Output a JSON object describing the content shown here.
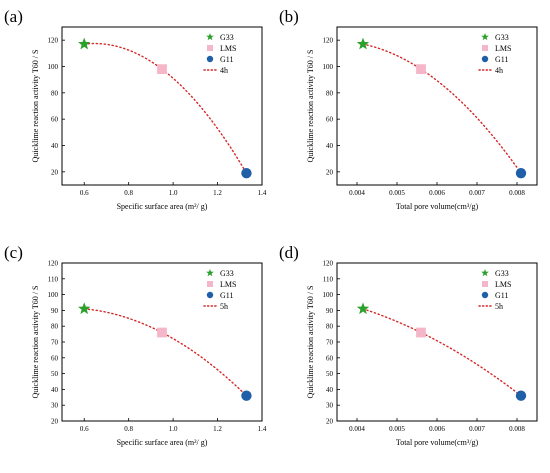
{
  "chart_data": [
    {
      "panel_label": "(a)",
      "type": "scatter",
      "xlabel": "Specific surface area (m²/ g)",
      "ylabel": "Quicklime reaction activity T60 / S",
      "xlim": [
        0.5,
        1.4
      ],
      "ylim": [
        10,
        130
      ],
      "x_ticks": [
        "0.6",
        "0.8",
        "1.0",
        "1.2",
        "1.4"
      ],
      "y_ticks": [
        "20",
        "40",
        "60",
        "80",
        "100",
        "120"
      ],
      "series": [
        {
          "name": "G33",
          "marker": "star",
          "color": "#2ca02c",
          "x": [
            0.6
          ],
          "y": [
            117
          ]
        },
        {
          "name": "LMS",
          "marker": "square",
          "color": "#f4b6c8",
          "x": [
            0.95
          ],
          "y": [
            98
          ]
        },
        {
          "name": "G11",
          "marker": "circle",
          "color": "#1f5fa8",
          "x": [
            1.33
          ],
          "y": [
            19
          ]
        }
      ],
      "fit": {
        "name": "4h",
        "color": "#d62728",
        "x": [
          0.6,
          0.95,
          1.33
        ],
        "y": [
          117,
          98,
          19
        ]
      },
      "legend": "top-right"
    },
    {
      "panel_label": "(b)",
      "type": "scatter",
      "xlabel": "Total pore volume(cm³/g)",
      "ylabel": "Quicklime reaction activity T60 / S",
      "xlim": [
        0.0035,
        0.0085
      ],
      "ylim": [
        10,
        130
      ],
      "x_ticks": [
        "0.004",
        "0.005",
        "0.006",
        "0.007",
        "0.008"
      ],
      "y_ticks": [
        "20",
        "40",
        "60",
        "80",
        "100",
        "120"
      ],
      "series": [
        {
          "name": "G33",
          "marker": "star",
          "color": "#2ca02c",
          "x": [
            0.00415
          ],
          "y": [
            117
          ]
        },
        {
          "name": "LMS",
          "marker": "square",
          "color": "#f4b6c8",
          "x": [
            0.0056
          ],
          "y": [
            98
          ]
        },
        {
          "name": "G11",
          "marker": "circle",
          "color": "#1f5fa8",
          "x": [
            0.0081
          ],
          "y": [
            19
          ]
        }
      ],
      "fit": {
        "name": "4h",
        "color": "#d62728",
        "x": [
          0.00415,
          0.0056,
          0.0081
        ],
        "y": [
          117,
          98,
          19
        ]
      },
      "legend": "top-right"
    },
    {
      "panel_label": "(c)",
      "type": "scatter",
      "xlabel": "Specific surface area (m²/ g)",
      "ylabel": "Quicklime reaction activity T60 / S",
      "xlim": [
        0.5,
        1.4
      ],
      "ylim": [
        20,
        120
      ],
      "x_ticks": [
        "0.6",
        "0.8",
        "1.0",
        "1.2",
        "1.4"
      ],
      "y_ticks": [
        "20",
        "30",
        "40",
        "50",
        "60",
        "70",
        "80",
        "90",
        "100",
        "110",
        "120"
      ],
      "series": [
        {
          "name": "G33",
          "marker": "star",
          "color": "#2ca02c",
          "x": [
            0.6
          ],
          "y": [
            91
          ]
        },
        {
          "name": "LMS",
          "marker": "square",
          "color": "#f4b6c8",
          "x": [
            0.95
          ],
          "y": [
            76
          ]
        },
        {
          "name": "G11",
          "marker": "circle",
          "color": "#1f5fa8",
          "x": [
            1.33
          ],
          "y": [
            36
          ]
        }
      ],
      "fit": {
        "name": "5h",
        "color": "#d62728",
        "x": [
          0.6,
          0.95,
          1.33
        ],
        "y": [
          91,
          76,
          36
        ]
      },
      "legend": "top-right"
    },
    {
      "panel_label": "(d)",
      "type": "scatter",
      "xlabel": "Total pore volume(cm³/g)",
      "ylabel": "Quicklime reaction activity T60 / S",
      "xlim": [
        0.0035,
        0.0085
      ],
      "ylim": [
        20,
        120
      ],
      "x_ticks": [
        "0.004",
        "0.005",
        "0.006",
        "0.007",
        "0.008"
      ],
      "y_ticks": [
        "20",
        "30",
        "40",
        "50",
        "60",
        "70",
        "80",
        "90",
        "100",
        "110",
        "120"
      ],
      "series": [
        {
          "name": "G33",
          "marker": "star",
          "color": "#2ca02c",
          "x": [
            0.00415
          ],
          "y": [
            91
          ]
        },
        {
          "name": "LMS",
          "marker": "square",
          "color": "#f4b6c8",
          "x": [
            0.0056
          ],
          "y": [
            76
          ]
        },
        {
          "name": "G11",
          "marker": "circle",
          "color": "#1f5fa8",
          "x": [
            0.0081
          ],
          "y": [
            36
          ]
        }
      ],
      "fit": {
        "name": "5h",
        "color": "#d62728",
        "x": [
          0.00415,
          0.0056,
          0.0081
        ],
        "y": [
          91,
          76,
          36
        ]
      },
      "legend": "top-right"
    }
  ]
}
